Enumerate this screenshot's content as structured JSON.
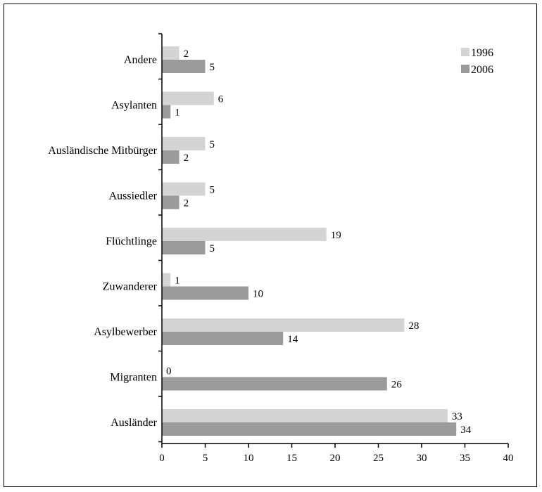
{
  "chart_data": {
    "type": "bar",
    "orientation": "horizontal",
    "categories": [
      "Andere",
      "Asylanten",
      "Ausländische Mitbürger",
      "Aussiedler",
      "Flüchtlinge",
      "Zuwanderer",
      "Asylbewerber",
      "Migranten",
      "Ausländer"
    ],
    "series": [
      {
        "name": "1996",
        "color": "#d4d4d4",
        "values": [
          2,
          6,
          5,
          5,
          19,
          1,
          28,
          0,
          33
        ]
      },
      {
        "name": "2006",
        "color": "#9b9b9b",
        "values": [
          5,
          1,
          2,
          2,
          5,
          10,
          14,
          26,
          34
        ]
      }
    ],
    "x_ticks": [
      0,
      5,
      10,
      15,
      20,
      25,
      30,
      35,
      40
    ],
    "xlim": [
      0,
      40
    ],
    "grid": false,
    "legend_position": "top-right",
    "title": "",
    "xlabel": "",
    "ylabel": ""
  }
}
